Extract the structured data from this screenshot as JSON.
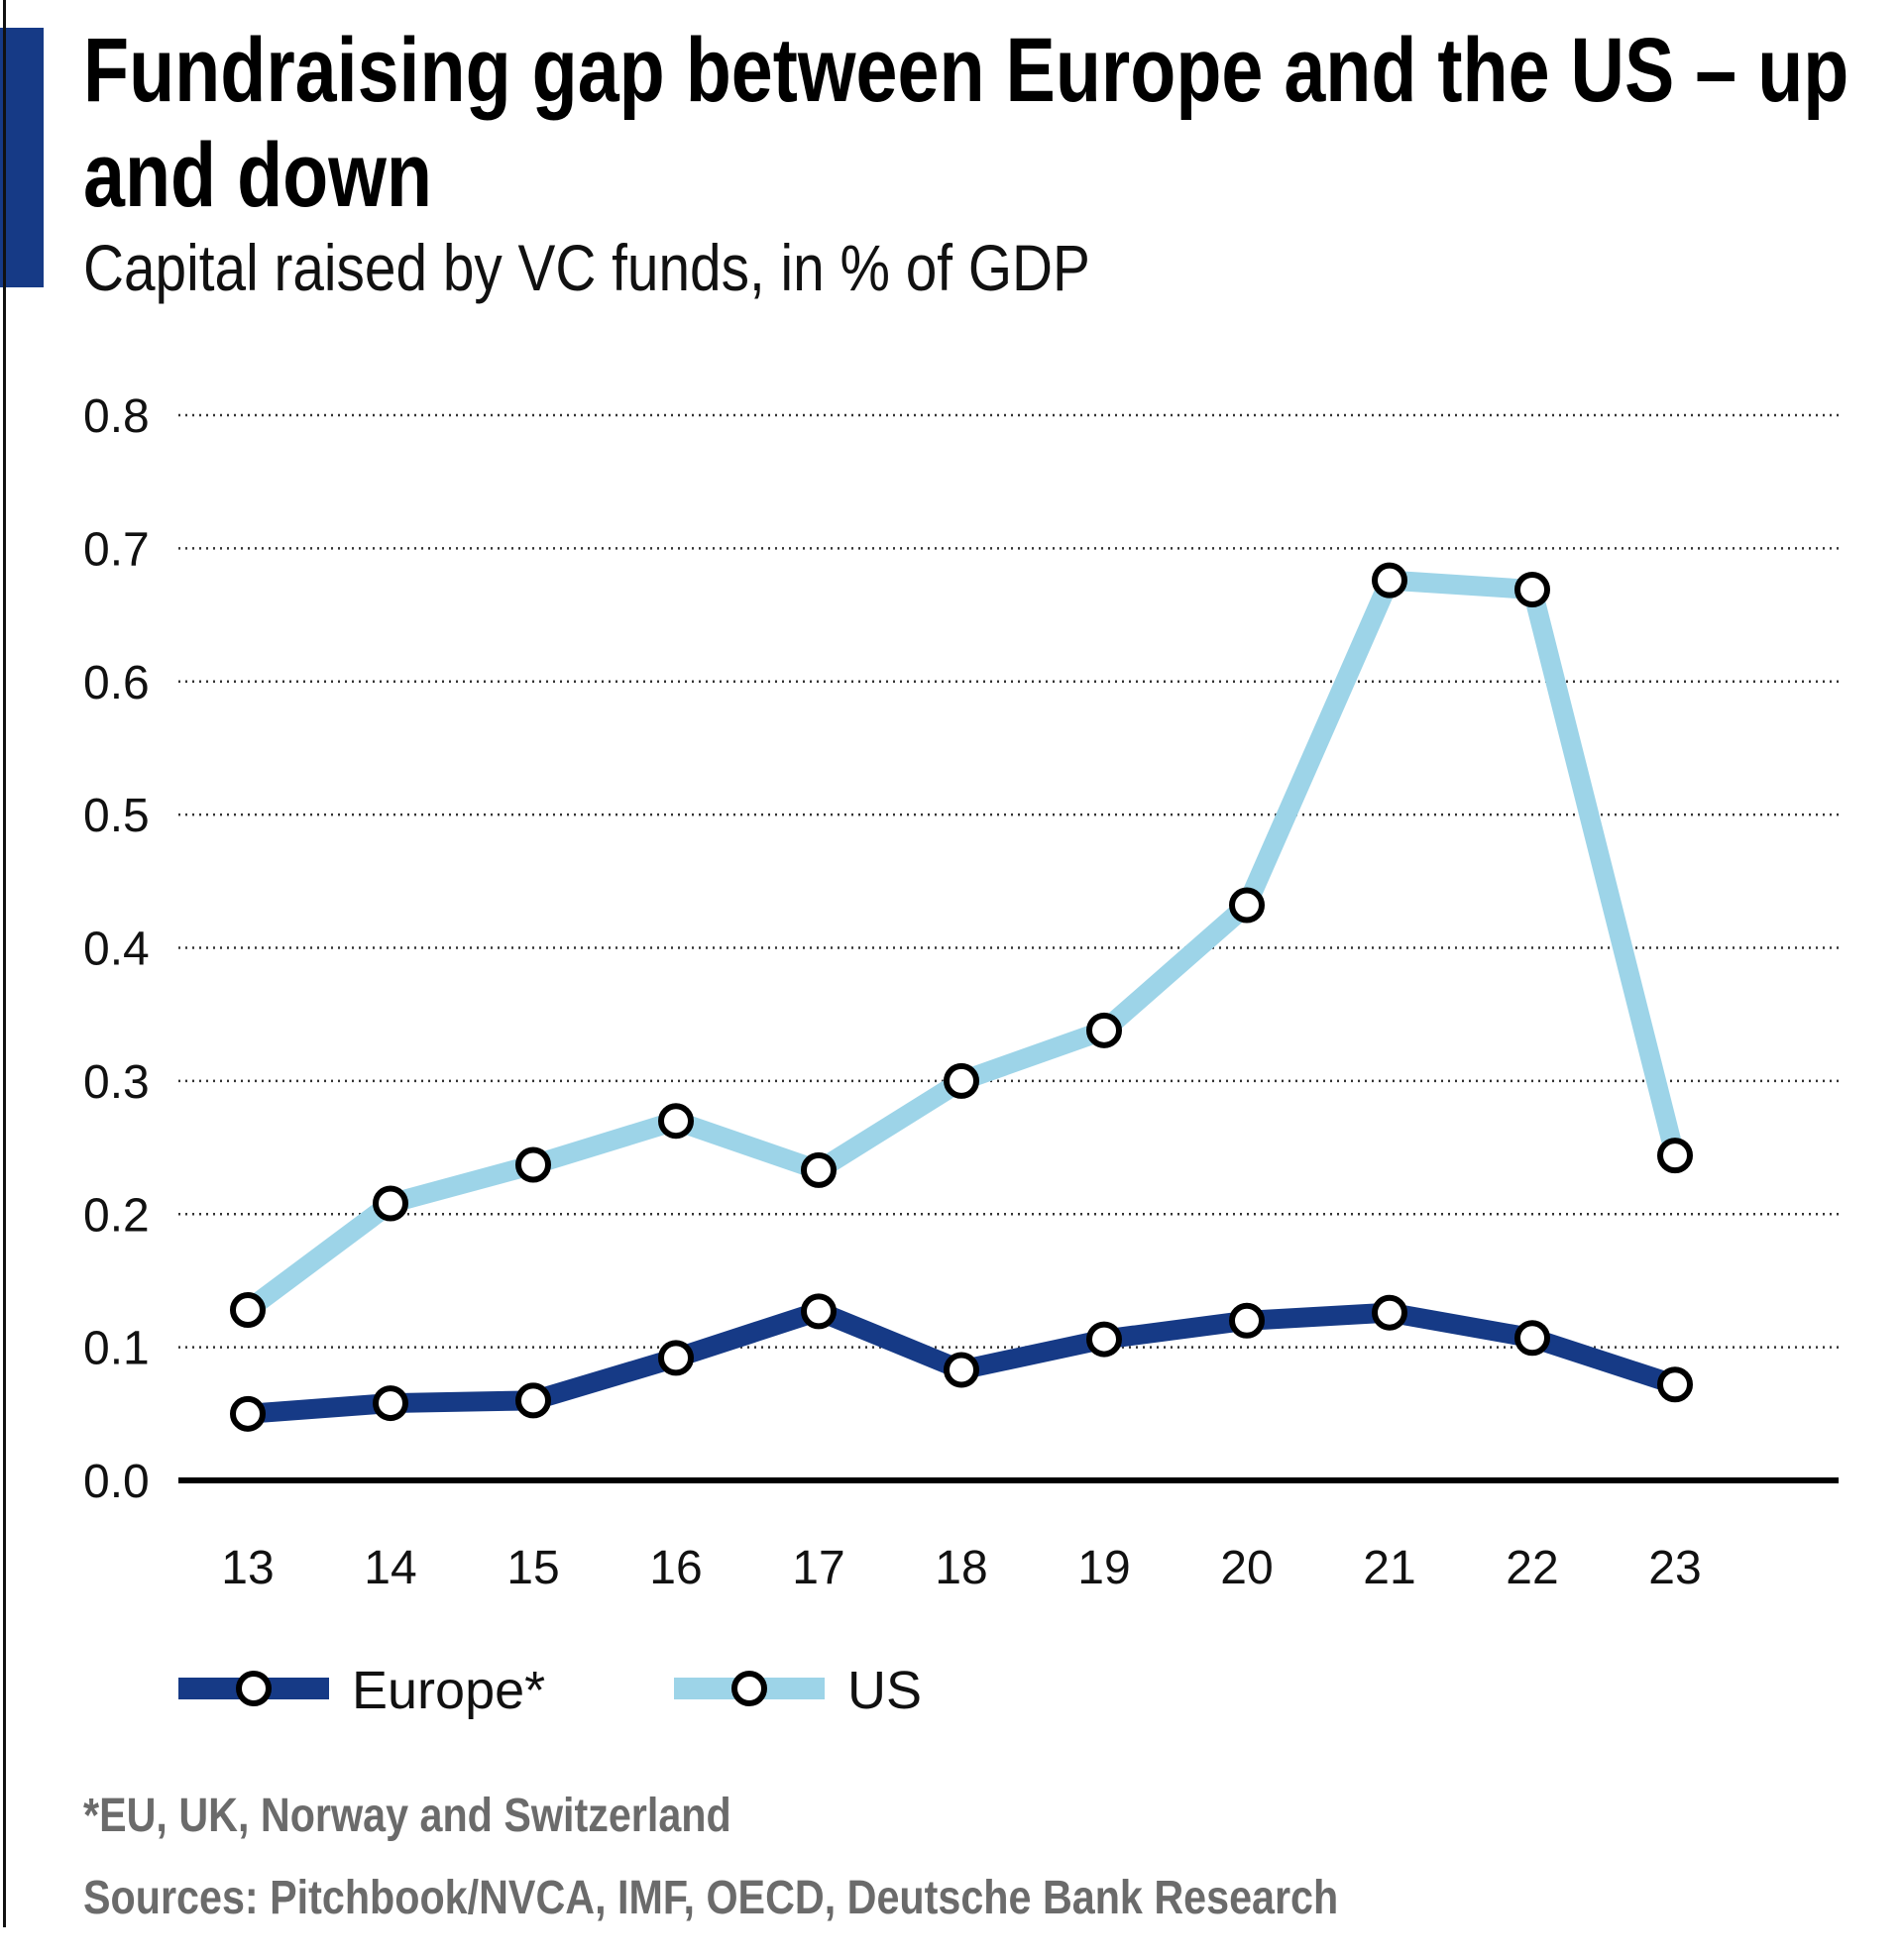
{
  "title": "Fundraising gap between Europe and the US – up and down",
  "subtitle": "Capital raised by VC funds, in % of GDP",
  "footnote": "*EU, UK, Norway and Switzerland",
  "sources": "Sources: Pitchbook/NVCA, IMF, OECD, Deutsche Bank Research",
  "colors": {
    "accent": "#163a86",
    "europe": "#163a86",
    "us": "#9dd4e8"
  },
  "chart_data": {
    "type": "line",
    "title": "Fundraising gap between Europe and the US – up and down",
    "subtitle": "Capital raised by VC funds, in % of GDP",
    "x": [
      "13",
      "14",
      "15",
      "16",
      "17",
      "18",
      "19",
      "20",
      "21",
      "22",
      "23"
    ],
    "ylim": [
      0,
      0.8
    ],
    "yticks": [
      "0.0",
      "0.1",
      "0.2",
      "0.3",
      "0.4",
      "0.5",
      "0.6",
      "0.7",
      "0.8"
    ],
    "grid": "horizontal dotted",
    "legend": "bottom-left",
    "series": [
      {
        "name": "Europe*",
        "color": "#163a86",
        "values": [
          0.05,
          0.058,
          0.06,
          0.092,
          0.127,
          0.083,
          0.106,
          0.12,
          0.126,
          0.107,
          0.072
        ]
      },
      {
        "name": "US",
        "color": "#9dd4e8",
        "values": [
          0.128,
          0.208,
          0.237,
          0.27,
          0.233,
          0.3,
          0.338,
          0.432,
          0.676,
          0.669,
          0.244
        ]
      }
    ]
  }
}
